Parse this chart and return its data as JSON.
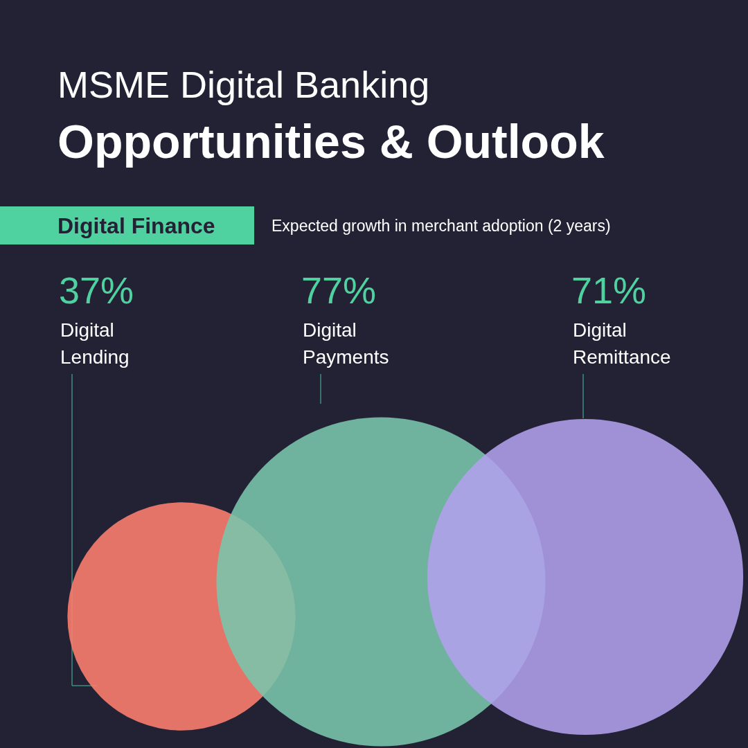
{
  "chart_data": {
    "type": "other",
    "title": "MSME Digital Banking",
    "subtitle": "Opportunities & Outlook",
    "annotations": [
      "Digital Finance",
      "Expected growth in merchant adoption (2 years)"
    ],
    "categories": [
      "Digital Lending",
      "Digital Payments",
      "Digital Remittance"
    ],
    "values": [
      37,
      77,
      71
    ],
    "value_labels": [
      "37%",
      "77%",
      "71%"
    ],
    "colors": [
      "#ff806e",
      "#7ac6ad",
      "#b2a0ee"
    ]
  }
}
